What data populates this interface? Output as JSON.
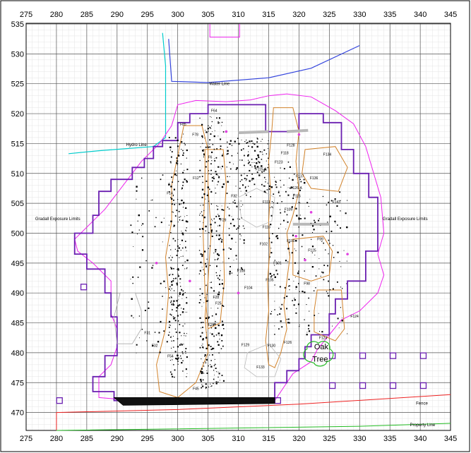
{
  "chart_data": {
    "type": "site-plan",
    "x_ticks": [
      "275",
      "280",
      "285",
      "290",
      "295",
      "300",
      "305",
      "310",
      "315",
      "320",
      "325",
      "330",
      "335",
      "340",
      "345"
    ],
    "y_ticks": [
      "535",
      "530",
      "525",
      "520",
      "515",
      "510",
      "505",
      "500",
      "495",
      "490",
      "485",
      "480",
      "475",
      "470"
    ],
    "xlim": [
      275,
      345
    ],
    "ylim": [
      467,
      535
    ],
    "grid": true,
    "labels": {
      "water_line": "Water Line",
      "hydro_line": "Hydro Line",
      "gradall_left": "Gradall Exposure Limits",
      "gradall_right": "Gradall Exposure Limits",
      "fence": "Fence",
      "property_line": "Property Line",
      "oak": "Oak",
      "tree": "Tree"
    },
    "features": [
      {
        "id": "F64",
        "x": 305.5,
        "y": 520.3
      },
      {
        "id": "F85",
        "x": 300.4,
        "y": 518.0
      },
      {
        "id": "F78",
        "x": 302.4,
        "y": 516.3
      },
      {
        "id": "F6",
        "x": 305.0,
        "y": 512.5
      },
      {
        "id": "F128",
        "x": 318.0,
        "y": 514.5
      },
      {
        "id": "F134",
        "x": 324.0,
        "y": 513.0
      },
      {
        "id": "F118",
        "x": 317.0,
        "y": 513.2
      },
      {
        "id": "F123",
        "x": 316.0,
        "y": 511.7
      },
      {
        "id": "F115-A",
        "x": 312.8,
        "y": 510.5
      },
      {
        "id": "F137",
        "x": 319.5,
        "y": 509.3
      },
      {
        "id": "F136",
        "x": 321.8,
        "y": 509.0
      },
      {
        "id": "F12",
        "x": 302.5,
        "y": 509.0
      },
      {
        "id": "F126-A",
        "x": 318.6,
        "y": 507.4
      },
      {
        "id": "F14",
        "x": 298.2,
        "y": 506.5
      },
      {
        "id": "F32",
        "x": 308.8,
        "y": 506.0
      },
      {
        "id": "F116",
        "x": 319.0,
        "y": 506.0
      },
      {
        "id": "F143",
        "x": 325.5,
        "y": 505.0
      },
      {
        "id": "F111",
        "x": 314.0,
        "y": 505.0
      },
      {
        "id": "F109",
        "x": 317.6,
        "y": 503.8
      },
      {
        "id": "F29",
        "x": 307.0,
        "y": 502.0
      },
      {
        "id": "F116b",
        "x": 314.0,
        "y": 500.8
      },
      {
        "id": "F99",
        "x": 323.0,
        "y": 498.8
      },
      {
        "id": "F100",
        "x": 318.0,
        "y": 498.5
      },
      {
        "id": "F102",
        "x": 313.5,
        "y": 498.0
      },
      {
        "id": "F125",
        "x": 321.5,
        "y": 496.9
      },
      {
        "id": "F101",
        "x": 315.8,
        "y": 494.8
      },
      {
        "id": "F108",
        "x": 309.8,
        "y": 493.5
      },
      {
        "id": "F105",
        "x": 314.5,
        "y": 492.0
      },
      {
        "id": "F98",
        "x": 320.8,
        "y": 491.4
      },
      {
        "id": "F104",
        "x": 311.0,
        "y": 490.7
      },
      {
        "id": "F28",
        "x": 305.8,
        "y": 489.1
      },
      {
        "id": "F25",
        "x": 306.2,
        "y": 488.1
      },
      {
        "id": "F124",
        "x": 328.5,
        "y": 485.9
      },
      {
        "id": "F19",
        "x": 305.0,
        "y": 484.5
      },
      {
        "id": "F31",
        "x": 294.5,
        "y": 483.1
      },
      {
        "id": "F129",
        "x": 310.5,
        "y": 481.1
      },
      {
        "id": "F130",
        "x": 314.8,
        "y": 481.0
      },
      {
        "id": "F126",
        "x": 317.5,
        "y": 481.5
      },
      {
        "id": "F124b",
        "x": 323.3,
        "y": 482.3
      },
      {
        "id": "F32b",
        "x": 295.7,
        "y": 481.0
      },
      {
        "id": "F54",
        "x": 298.3,
        "y": 479.2
      },
      {
        "id": "F133",
        "x": 313.0,
        "y": 477.4
      },
      {
        "id": "F45",
        "x": 302.5,
        "y": 473.8
      }
    ]
  }
}
